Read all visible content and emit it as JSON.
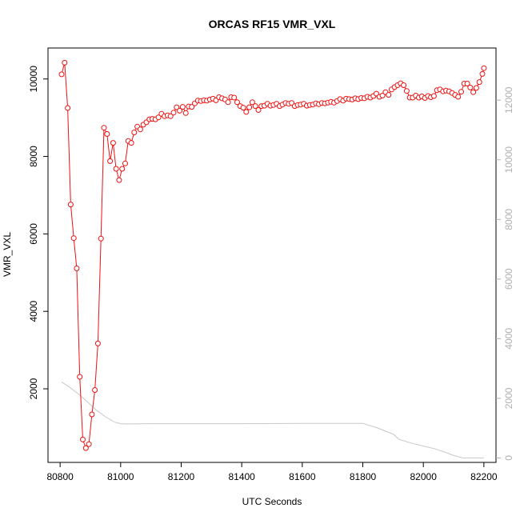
{
  "chart_data": {
    "type": "line",
    "title": "ORCAS RF15 VMR_VXL",
    "xlabel": "UTC Seconds",
    "ylabel": "VMR_VXL",
    "xlim": [
      80760,
      82240
    ],
    "ylim": [
      100,
      10800
    ],
    "y2lim": [
      -150,
      13750
    ],
    "x_ticks": [
      80800,
      81000,
      81200,
      81400,
      81600,
      81800,
      82000,
      82200
    ],
    "y_ticks": [
      2000,
      4000,
      6000,
      8000,
      10000
    ],
    "y2_ticks": [
      0,
      2000,
      4000,
      6000,
      8000,
      10000,
      12000
    ],
    "grid": false,
    "series": [
      {
        "axis": "left",
        "color": "#ee1111",
        "style": "line+circles",
        "points": [
          [
            80805,
            10120
          ],
          [
            80815,
            10420
          ],
          [
            80825,
            9250
          ],
          [
            80835,
            6760
          ],
          [
            80845,
            5890
          ],
          [
            80855,
            5110
          ],
          [
            80865,
            2310
          ],
          [
            80875,
            690
          ],
          [
            80885,
            470
          ],
          [
            80895,
            570
          ],
          [
            80905,
            1340
          ],
          [
            80915,
            1970
          ],
          [
            80925,
            3170
          ],
          [
            80935,
            5880
          ],
          [
            80945,
            8740
          ],
          [
            80955,
            8580
          ],
          [
            80965,
            7880
          ],
          [
            80975,
            8350
          ],
          [
            80985,
            7680
          ],
          [
            80995,
            7390
          ],
          [
            81005,
            7680
          ],
          [
            81015,
            7820
          ],
          [
            81025,
            8400
          ],
          [
            81035,
            8350
          ],
          [
            81045,
            8620
          ],
          [
            81055,
            8770
          ],
          [
            81065,
            8700
          ],
          [
            81075,
            8820
          ],
          [
            81085,
            8880
          ],
          [
            81095,
            8960
          ],
          [
            81105,
            8970
          ],
          [
            81115,
            8960
          ],
          [
            81125,
            9010
          ],
          [
            81135,
            9100
          ],
          [
            81145,
            9040
          ],
          [
            81155,
            9060
          ],
          [
            81165,
            9040
          ],
          [
            81175,
            9130
          ],
          [
            81185,
            9270
          ],
          [
            81195,
            9180
          ],
          [
            81205,
            9280
          ],
          [
            81215,
            9120
          ],
          [
            81225,
            9290
          ],
          [
            81235,
            9280
          ],
          [
            81245,
            9370
          ],
          [
            81255,
            9440
          ],
          [
            81265,
            9430
          ],
          [
            81275,
            9450
          ],
          [
            81285,
            9440
          ],
          [
            81295,
            9470
          ],
          [
            81305,
            9490
          ],
          [
            81315,
            9450
          ],
          [
            81325,
            9530
          ],
          [
            81335,
            9500
          ],
          [
            81345,
            9470
          ],
          [
            81355,
            9400
          ],
          [
            81365,
            9530
          ],
          [
            81375,
            9520
          ],
          [
            81385,
            9400
          ],
          [
            81395,
            9300
          ],
          [
            81405,
            9260
          ],
          [
            81415,
            9150
          ],
          [
            81425,
            9270
          ],
          [
            81435,
            9400
          ],
          [
            81445,
            9300
          ],
          [
            81455,
            9200
          ],
          [
            81465,
            9300
          ],
          [
            81475,
            9310
          ],
          [
            81485,
            9360
          ],
          [
            81495,
            9310
          ],
          [
            81505,
            9330
          ],
          [
            81515,
            9360
          ],
          [
            81525,
            9300
          ],
          [
            81535,
            9340
          ],
          [
            81545,
            9380
          ],
          [
            81555,
            9360
          ],
          [
            81565,
            9380
          ],
          [
            81575,
            9300
          ],
          [
            81585,
            9330
          ],
          [
            81595,
            9340
          ],
          [
            81605,
            9360
          ],
          [
            81615,
            9310
          ],
          [
            81625,
            9330
          ],
          [
            81635,
            9340
          ],
          [
            81645,
            9370
          ],
          [
            81655,
            9350
          ],
          [
            81665,
            9380
          ],
          [
            81675,
            9370
          ],
          [
            81685,
            9390
          ],
          [
            81695,
            9410
          ],
          [
            81705,
            9390
          ],
          [
            81715,
            9430
          ],
          [
            81725,
            9480
          ],
          [
            81735,
            9440
          ],
          [
            81745,
            9490
          ],
          [
            81755,
            9480
          ],
          [
            81765,
            9470
          ],
          [
            81775,
            9500
          ],
          [
            81785,
            9480
          ],
          [
            81795,
            9510
          ],
          [
            81805,
            9500
          ],
          [
            81815,
            9540
          ],
          [
            81825,
            9520
          ],
          [
            81835,
            9560
          ],
          [
            81845,
            9620
          ],
          [
            81855,
            9540
          ],
          [
            81865,
            9570
          ],
          [
            81875,
            9660
          ],
          [
            81885,
            9590
          ],
          [
            81895,
            9730
          ],
          [
            81905,
            9790
          ],
          [
            81915,
            9840
          ],
          [
            81925,
            9890
          ],
          [
            81935,
            9840
          ],
          [
            81945,
            9690
          ],
          [
            81955,
            9520
          ],
          [
            81965,
            9520
          ],
          [
            81975,
            9570
          ],
          [
            81985,
            9520
          ],
          [
            81995,
            9550
          ],
          [
            82005,
            9510
          ],
          [
            82015,
            9560
          ],
          [
            82025,
            9530
          ],
          [
            82035,
            9560
          ],
          [
            82045,
            9710
          ],
          [
            82055,
            9730
          ],
          [
            82065,
            9680
          ],
          [
            82075,
            9700
          ],
          [
            82085,
            9680
          ],
          [
            82095,
            9640
          ],
          [
            82105,
            9590
          ],
          [
            82115,
            9540
          ],
          [
            82125,
            9670
          ],
          [
            82135,
            9880
          ],
          [
            82145,
            9880
          ],
          [
            82155,
            9780
          ],
          [
            82165,
            9660
          ],
          [
            82175,
            9770
          ],
          [
            82185,
            9920
          ],
          [
            82195,
            10130
          ],
          [
            82200,
            10280
          ]
        ]
      },
      {
        "axis": "right",
        "color": "#c8c8c8",
        "style": "line",
        "points": [
          [
            80805,
            2550
          ],
          [
            80830,
            2380
          ],
          [
            80860,
            2150
          ],
          [
            80890,
            1880
          ],
          [
            80920,
            1600
          ],
          [
            80950,
            1380
          ],
          [
            80980,
            1200
          ],
          [
            81000,
            1150
          ],
          [
            81020,
            1140
          ],
          [
            81100,
            1150
          ],
          [
            81200,
            1150
          ],
          [
            81400,
            1150
          ],
          [
            81600,
            1160
          ],
          [
            81800,
            1160
          ],
          [
            81850,
            1000
          ],
          [
            81880,
            880
          ],
          [
            81900,
            800
          ],
          [
            81920,
            620
          ],
          [
            81960,
            500
          ],
          [
            82000,
            400
          ],
          [
            82040,
            300
          ],
          [
            82080,
            160
          ],
          [
            82100,
            80
          ],
          [
            82130,
            0
          ],
          [
            82160,
            0
          ],
          [
            82200,
            0
          ]
        ]
      }
    ]
  }
}
